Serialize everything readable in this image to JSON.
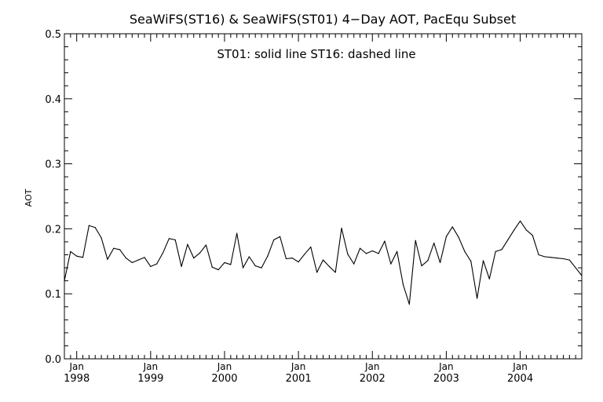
{
  "chart_data": {
    "type": "line",
    "title": "SeaWiFS(ST16) & SeaWiFS(ST01) 4−Day AOT, PacEqu Subset",
    "annotation": "ST01: solid line   ST16: dashed line",
    "ylabel": "AOT",
    "xlabel": "",
    "ylim": [
      0.0,
      0.5
    ],
    "xlim": [
      "1997-11",
      "2004-11"
    ],
    "grid": false,
    "y_ticks": [
      "0.0",
      "0.1",
      "0.2",
      "0.3",
      "0.4",
      "0.5"
    ],
    "x_ticks": [
      {
        "month": "Jan",
        "year": "1998",
        "date": "1998-01"
      },
      {
        "month": "Jan",
        "year": "1999",
        "date": "1999-01"
      },
      {
        "month": "Jan",
        "year": "2000",
        "date": "2000-01"
      },
      {
        "month": "Jan",
        "year": "2001",
        "date": "2001-01"
      },
      {
        "month": "Jan",
        "year": "2002",
        "date": "2002-01"
      },
      {
        "month": "Jan",
        "year": "2003",
        "date": "2003-01"
      },
      {
        "month": "Jan",
        "year": "2004",
        "date": "2004-01"
      }
    ],
    "series": [
      {
        "name": "ST01",
        "style": "solid",
        "color": "#000000",
        "points": [
          [
            "1997-11",
            0.12
          ],
          [
            "1997-12",
            0.165
          ],
          [
            "1998-01",
            0.158
          ],
          [
            "1998-02",
            0.156
          ],
          [
            "1998-03",
            0.205
          ],
          [
            "1998-04",
            0.202
          ],
          [
            "1998-05",
            0.186
          ],
          [
            "1998-06",
            0.153
          ],
          [
            "1998-07",
            0.17
          ],
          [
            "1998-08",
            0.168
          ],
          [
            "1998-09",
            0.155
          ],
          [
            "1998-10",
            0.148
          ],
          [
            "1998-11",
            0.152
          ],
          [
            "1998-12",
            0.156
          ],
          [
            "1999-01",
            0.142
          ],
          [
            "1999-02",
            0.146
          ],
          [
            "1999-03",
            0.163
          ],
          [
            "1999-04",
            0.185
          ],
          [
            "1999-05",
            0.183
          ],
          [
            "1999-06",
            0.142
          ],
          [
            "1999-07",
            0.176
          ],
          [
            "1999-08",
            0.155
          ],
          [
            "1999-09",
            0.163
          ],
          [
            "1999-10",
            0.175
          ],
          [
            "1999-11",
            0.141
          ],
          [
            "1999-12",
            0.137
          ],
          [
            "2000-01",
            0.148
          ],
          [
            "2000-02",
            0.145
          ],
          [
            "2000-03",
            0.193
          ],
          [
            "2000-04",
            0.14
          ],
          [
            "2000-05",
            0.157
          ],
          [
            "2000-06",
            0.143
          ],
          [
            "2000-07",
            0.14
          ],
          [
            "2000-08",
            0.158
          ],
          [
            "2000-09",
            0.183
          ],
          [
            "2000-10",
            0.188
          ],
          [
            "2000-11",
            0.154
          ],
          [
            "2000-12",
            0.155
          ],
          [
            "2001-01",
            0.149
          ],
          [
            "2001-02",
            0.161
          ],
          [
            "2001-03",
            0.172
          ],
          [
            "2001-04",
            0.133
          ],
          [
            "2001-05",
            0.152
          ],
          [
            "2001-06",
            0.142
          ],
          [
            "2001-07",
            0.133
          ],
          [
            "2001-08",
            0.201
          ],
          [
            "2001-09",
            0.161
          ],
          [
            "2001-10",
            0.146
          ],
          [
            "2001-11",
            0.17
          ],
          [
            "2001-12",
            0.162
          ],
          [
            "2002-01",
            0.166
          ],
          [
            "2002-02",
            0.162
          ],
          [
            "2002-03",
            0.181
          ],
          [
            "2002-04",
            0.146
          ],
          [
            "2002-05",
            0.165
          ],
          [
            "2002-06",
            0.114
          ],
          [
            "2002-07",
            0.084
          ],
          [
            "2002-08",
            0.182
          ],
          [
            "2002-09",
            0.143
          ],
          [
            "2002-10",
            0.151
          ],
          [
            "2002-11",
            0.178
          ],
          [
            "2002-12",
            0.148
          ],
          [
            "2003-01",
            0.188
          ],
          [
            "2003-02",
            0.203
          ],
          [
            "2003-03",
            0.187
          ],
          [
            "2003-04",
            0.165
          ],
          [
            "2003-05",
            0.15
          ],
          [
            "2003-06",
            0.093
          ],
          [
            "2003-07",
            0.151
          ],
          [
            "2003-08",
            0.123
          ],
          [
            "2003-09",
            0.165
          ],
          [
            "2003-10",
            0.168
          ],
          [
            "2003-11",
            0.183
          ],
          [
            "2003-12",
            0.198
          ],
          [
            "2004-01",
            0.212
          ],
          [
            "2004-02",
            0.198
          ],
          [
            "2004-03",
            0.19
          ],
          [
            "2004-04",
            0.16
          ],
          [
            "2004-05",
            0.157
          ],
          [
            "2004-06",
            0.156
          ],
          [
            "2004-07",
            0.155
          ],
          [
            "2004-08",
            0.154
          ],
          [
            "2004-09",
            0.152
          ],
          [
            "2004-10",
            0.14
          ],
          [
            "2004-11",
            0.128
          ]
        ]
      }
    ]
  }
}
